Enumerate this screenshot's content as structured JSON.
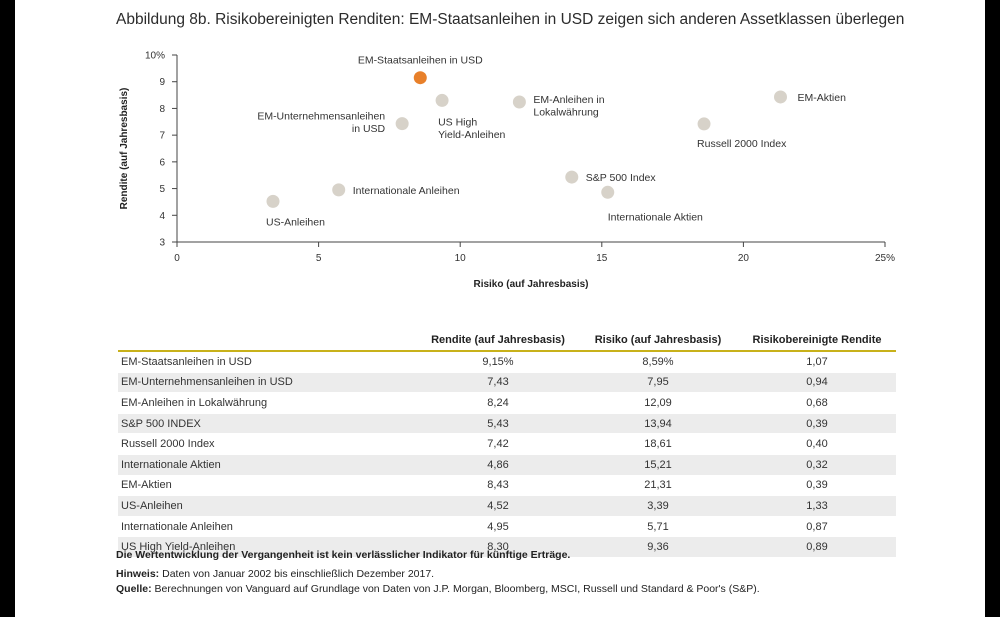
{
  "title": "Abbildung 8b. Risikobereinigten Renditen: EM-Staatsanleihen in USD zeigen sich anderen Assetklassen überlegen",
  "chart_data": {
    "type": "scatter",
    "xlabel": "Risiko (auf Jahresbasis)",
    "ylabel": "Rendite (auf Jahresbasis)",
    "xlim": [
      0,
      25
    ],
    "ylim": [
      3,
      10
    ],
    "x_ticks": [
      0,
      5,
      10,
      15,
      20,
      25
    ],
    "x_tick_labels": [
      "0",
      "5",
      "10",
      "15",
      "20",
      "25%"
    ],
    "y_ticks": [
      3,
      4,
      5,
      6,
      7,
      8,
      9,
      10
    ],
    "y_tick_labels": [
      "3",
      "4",
      "5",
      "6",
      "7",
      "8",
      "9",
      "10%"
    ],
    "points": [
      {
        "label": [
          "EM-Staatsanleihen in USD"
        ],
        "x": 8.59,
        "y": 9.15,
        "highlight": true
      },
      {
        "label": [
          "EM-Unternehmensanleihen",
          "in USD"
        ],
        "x": 7.95,
        "y": 7.43
      },
      {
        "label": [
          "EM-Anleihen in",
          "Lokalwährung"
        ],
        "x": 12.09,
        "y": 8.24
      },
      {
        "label": [
          "S&P 500 Index"
        ],
        "x": 13.94,
        "y": 5.43
      },
      {
        "label": [
          "Russell 2000 Index"
        ],
        "x": 18.61,
        "y": 7.42
      },
      {
        "label": [
          "Internationale Aktien"
        ],
        "x": 15.21,
        "y": 4.86
      },
      {
        "label": [
          "EM-Aktien"
        ],
        "x": 21.31,
        "y": 8.43
      },
      {
        "label": [
          "US-Anleihen"
        ],
        "x": 3.39,
        "y": 4.52
      },
      {
        "label": [
          "Internationale Anleihen"
        ],
        "x": 5.71,
        "y": 4.95
      },
      {
        "label": [
          "US High",
          "Yield-Anleihen"
        ],
        "x": 9.36,
        "y": 8.3
      }
    ],
    "colors": {
      "point": "#d7d2c9",
      "highlight": "#e8802a",
      "axis": "#444444"
    }
  },
  "table": {
    "headers": [
      "",
      "Rendite (auf Jahresbasis)",
      "Risiko (auf Jahresbasis)",
      "Risikobereinigte Rendite"
    ],
    "rows": [
      [
        "EM-Staatsanleihen in USD",
        "9,15%",
        "8,59%",
        "1,07"
      ],
      [
        "EM-Unternehmensanleihen in USD",
        "7,43",
        "7,95",
        "0,94"
      ],
      [
        "EM-Anleihen in Lokalwährung",
        "8,24",
        "12,09",
        "0,68"
      ],
      [
        "S&P 500 INDEX",
        "5,43",
        "13,94",
        "0,39"
      ],
      [
        "Russell 2000 Index",
        "7,42",
        "18,61",
        "0,40"
      ],
      [
        "Internationale Aktien",
        "4,86",
        "15,21",
        "0,32"
      ],
      [
        "EM-Aktien",
        "8,43",
        "21,31",
        "0,39"
      ],
      [
        "US-Anleihen",
        "4,52",
        "3,39",
        "1,33"
      ],
      [
        "Internationale Anleihen",
        "4,95",
        "5,71",
        "0,87"
      ],
      [
        "US High Yield-Anleihen",
        "8,30",
        "9,36",
        "0,89"
      ]
    ]
  },
  "footer": {
    "disclaimer": "Die Wertentwicklung der Vergangenheit ist kein verlässlicher Indikator für künftige Erträge.",
    "note_label": "Hinweis:",
    "note_text": " Daten von Januar 2002 bis einschließlich Dezember 2017.",
    "source_label": "Quelle:",
    "source_text": " Berechnungen von Vanguard auf Grundlage von Daten von J.P. Morgan, Bloomberg, MSCI, Russell und Standard & Poor's (S&P)."
  }
}
